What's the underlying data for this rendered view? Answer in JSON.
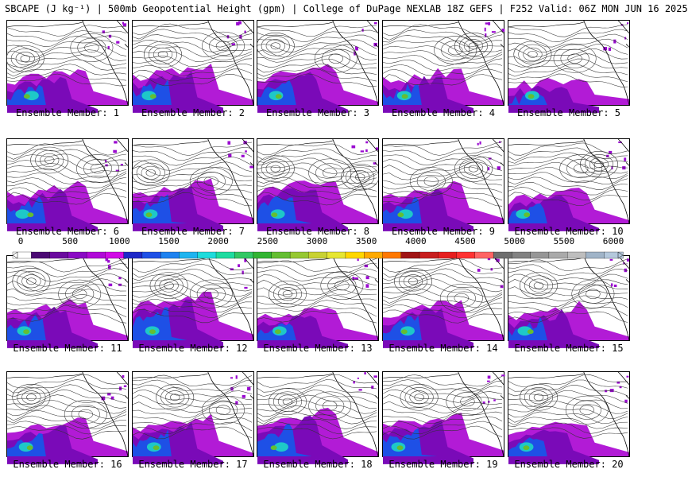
{
  "header": {
    "title": "SBCAPE (J kg⁻¹) | 500mb Geopotential Height (gpm) | College of DuPage NEXLAB 18Z GEFS | F252 Valid: 06Z MON JUN 16 2025"
  },
  "panels": [
    {
      "label": "Ensemble Member: 1",
      "highs": [
        [
          0.7,
          0.32
        ]
      ],
      "lows": [
        [
          0.15,
          0.45
        ]
      ],
      "cape": 0.8
    },
    {
      "label": "Ensemble Member: 2",
      "highs": [
        [
          0.75,
          0.3
        ]
      ],
      "lows": [
        [
          0.25,
          0.4
        ]
      ],
      "cape": 0.9
    },
    {
      "label": "Ensemble Member: 3",
      "highs": [
        [
          0.65,
          0.45
        ]
      ],
      "lows": [
        [
          0.15,
          0.3
        ]
      ],
      "cape": 0.85
    },
    {
      "label": "Ensemble Member: 4",
      "highs": [
        [
          0.6,
          0.35
        ]
      ],
      "lows": [
        [
          0.75,
          0.3
        ]
      ],
      "cape": 0.8
    },
    {
      "label": "Ensemble Member: 5",
      "highs": [
        [
          0.55,
          0.45
        ]
      ],
      "lows": [
        [
          0.2,
          0.4
        ]
      ],
      "cape": 0.6
    },
    {
      "label": "Ensemble Member: 6",
      "highs": [
        [
          0.75,
          0.35
        ]
      ],
      "lows": [
        [
          0.35,
          0.25
        ]
      ],
      "cape": 0.9
    },
    {
      "label": "Ensemble Member: 7",
      "highs": [
        [
          0.65,
          0.5
        ]
      ],
      "lows": [
        [
          0.15,
          0.4
        ]
      ],
      "cape": 1.0
    },
    {
      "label": "Ensemble Member: 8",
      "highs": [
        [
          0.6,
          0.4
        ]
      ],
      "lows": [
        [
          0.15,
          0.35
        ],
        [
          0.85,
          0.45
        ]
      ],
      "cape": 1.1
    },
    {
      "label": "Ensemble Member: 9",
      "highs": [
        [
          0.4,
          0.5
        ]
      ],
      "lows": [
        [
          0.75,
          0.35
        ]
      ],
      "cape": 0.9
    },
    {
      "label": "Ensemble Member: 10",
      "highs": [
        [
          0.6,
          0.35
        ]
      ],
      "lows": [
        [
          0.75,
          0.3
        ]
      ],
      "cape": 0.8
    },
    {
      "label": "Ensemble Member: 11",
      "highs": [
        [
          0.6,
          0.45
        ]
      ],
      "lows": [
        [
          0.2,
          0.3
        ]
      ],
      "cape": 0.9
    },
    {
      "label": "Ensemble Member: 12",
      "highs": [
        [
          0.65,
          0.45
        ]
      ],
      "lows": [
        [
          0.3,
          0.35
        ]
      ],
      "cape": 1.1
    },
    {
      "label": "Ensemble Member: 13",
      "highs": [
        [
          0.7,
          0.35
        ]
      ],
      "lows": [
        [
          0.25,
          0.45
        ]
      ],
      "cape": 0.7
    },
    {
      "label": "Ensemble Member: 14",
      "highs": [
        [
          0.65,
          0.5
        ]
      ],
      "lows": [
        [
          0.25,
          0.3
        ]
      ],
      "cape": 0.9
    },
    {
      "label": "Ensemble Member: 15",
      "highs": [
        [
          0.7,
          0.45
        ]
      ],
      "lows": [
        [
          0.25,
          0.35
        ]
      ],
      "cape": 0.8
    },
    {
      "label": "Ensemble Member: 16",
      "highs": [
        [
          0.65,
          0.5
        ]
      ],
      "lows": [
        [
          0.2,
          0.3
        ]
      ],
      "cape": 0.9
    },
    {
      "label": "Ensemble Member: 17",
      "highs": [
        [
          0.75,
          0.45
        ]
      ],
      "lows": [
        [
          0.35,
          0.3
        ]
      ],
      "cape": 0.9
    },
    {
      "label": "Ensemble Member: 18",
      "highs": [
        [
          0.6,
          0.4
        ]
      ],
      "lows": [
        [
          0.25,
          0.35
        ]
      ],
      "cape": 1.1
    },
    {
      "label": "Ensemble Member: 19",
      "highs": [
        [
          0.7,
          0.35
        ]
      ],
      "lows": [
        [
          0.3,
          0.3
        ]
      ],
      "cape": 1.0
    },
    {
      "label": "Ensemble Member: 20",
      "highs": [
        [
          0.65,
          0.45
        ]
      ],
      "lows": [
        [
          0.25,
          0.3
        ]
      ],
      "cape": 0.8
    }
  ],
  "colorbar": {
    "ticks": [
      "0",
      "500",
      "1000",
      "1500",
      "2000",
      "2500",
      "3000",
      "3500",
      "4000",
      "4500",
      "5000",
      "5500",
      "6000"
    ],
    "colors": [
      "#ffffff",
      "#4b0a73",
      "#6a0a9e",
      "#8a0ac4",
      "#b00ad8",
      "#d10ae6",
      "#1e28c8",
      "#1e50e6",
      "#1e82f0",
      "#1eb4f0",
      "#1edcdc",
      "#1edca0",
      "#32c864",
      "#32b432",
      "#64be32",
      "#96c832",
      "#c8d232",
      "#e6e632",
      "#ffd700",
      "#ffaa00",
      "#ff7800",
      "#a01414",
      "#c81e1e",
      "#e61e1e",
      "#ff3232",
      "#ff6464",
      "#6e6e6e",
      "#828282",
      "#969696",
      "#aaaaaa",
      "#bebebe",
      "#a0b4c8",
      "#b4c8dc"
    ]
  }
}
